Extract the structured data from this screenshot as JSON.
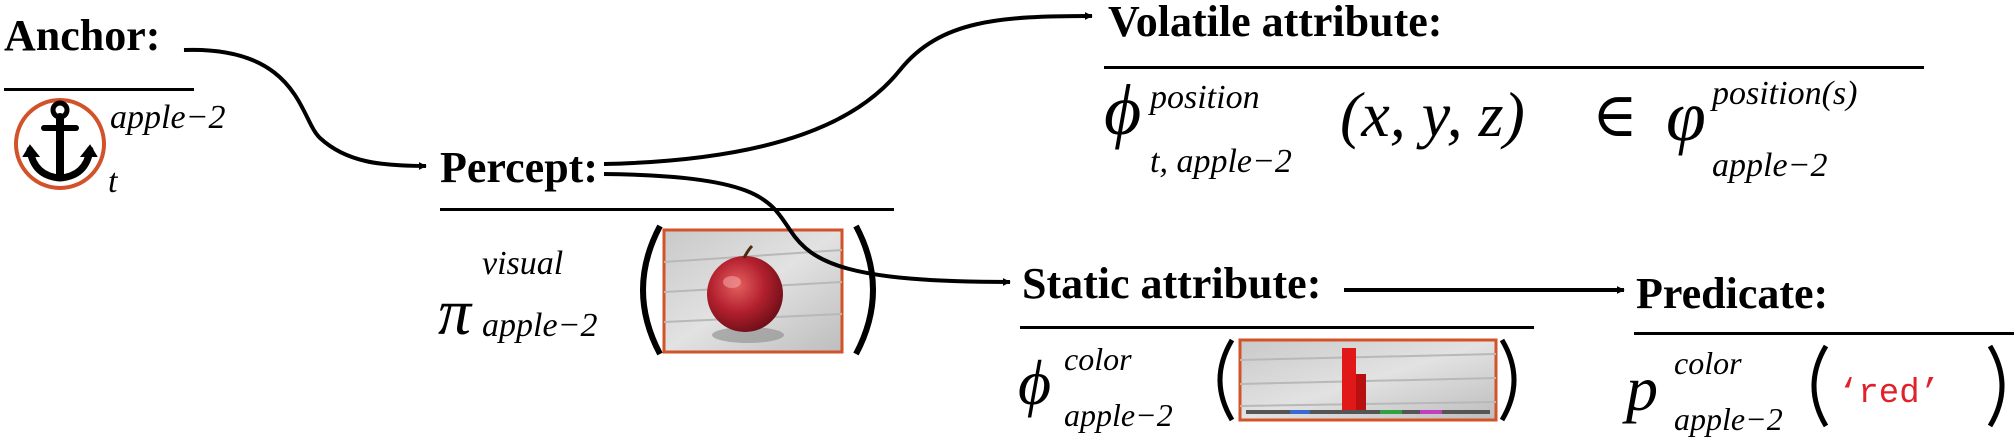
{
  "nodes": {
    "anchor": {
      "title": "Anchor:",
      "symbol_icon": "anchor-icon",
      "superscript": "apple−2",
      "subscript": "t"
    },
    "percept": {
      "title": "Percept:",
      "symbol": "π",
      "superscript": "visual",
      "subscript": "apple−2",
      "image_icon": "apple-photo"
    },
    "volatile": {
      "title": "Volatile attribute:",
      "phi": "ϕ",
      "superscript": "position",
      "subscript": "t, apple−2",
      "args": "(x, y, z)",
      "relation": "∈",
      "varphi": "φ",
      "rhs_superscript": "position(s)",
      "rhs_subscript": "apple−2"
    },
    "static": {
      "title": "Static attribute:",
      "phi": "ϕ",
      "superscript": "color",
      "subscript": "apple−2",
      "image_icon": "color-histogram"
    },
    "predicate": {
      "title": "Predicate:",
      "symbol": "p",
      "superscript": "color",
      "subscript": "apple−2",
      "value": "‘red’"
    }
  },
  "colors": {
    "ink": "#000000",
    "frame": "#d2522a",
    "value_red": "#e0202a",
    "hist_red": "#e01818"
  }
}
